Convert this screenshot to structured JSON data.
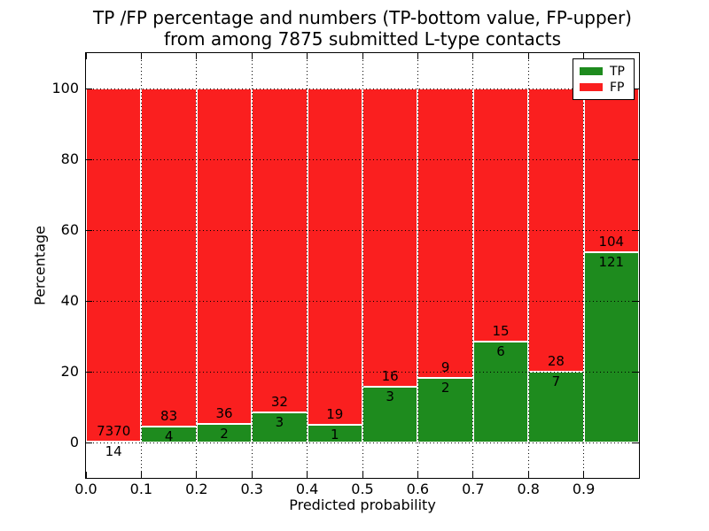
{
  "chart_data": {
    "type": "bar",
    "stacked_percent": true,
    "title_lines": [
      "TP /FP percentage and numbers (TP-bottom value, FP-upper)",
      "from among 7875 submitted L-type contacts"
    ],
    "xlabel": "Predicted probability",
    "ylabel": "Percentage",
    "total_contacts": 7875,
    "xlim": [
      0.0,
      1.0
    ],
    "ylim": [
      -10,
      110
    ],
    "bin_width": 0.1,
    "bin_starts": [
      0.0,
      0.1,
      0.2,
      0.3,
      0.4,
      0.5,
      0.6,
      0.7,
      0.8,
      0.9
    ],
    "xtick_labels": [
      "0.0",
      "0.1",
      "0.2",
      "0.3",
      "0.4",
      "0.5",
      "0.6",
      "0.7",
      "0.8",
      "0.9"
    ],
    "yticks": [
      0,
      20,
      40,
      60,
      80,
      100
    ],
    "ytick_labels": [
      "0",
      "20",
      "40",
      "60",
      "80",
      "100"
    ],
    "grid": true,
    "series": [
      {
        "name": "TP",
        "color": "#1e8b1e",
        "counts": [
          14,
          4,
          2,
          3,
          1,
          3,
          2,
          6,
          7,
          121
        ]
      },
      {
        "name": "FP",
        "color": "#fa1f1f",
        "counts": [
          7370,
          83,
          36,
          32,
          19,
          16,
          9,
          15,
          28,
          104
        ]
      }
    ],
    "tp_percent_by_bin": [
      0.19,
      4.6,
      5.26,
      8.57,
      5.0,
      15.79,
      18.18,
      28.57,
      20.0,
      53.78
    ],
    "legend": {
      "position": "upper right",
      "entries": [
        {
          "label": "TP",
          "color": "#1e8b1e"
        },
        {
          "label": "FP",
          "color": "#fa1f1f"
        }
      ]
    },
    "background": "#ffffff"
  }
}
